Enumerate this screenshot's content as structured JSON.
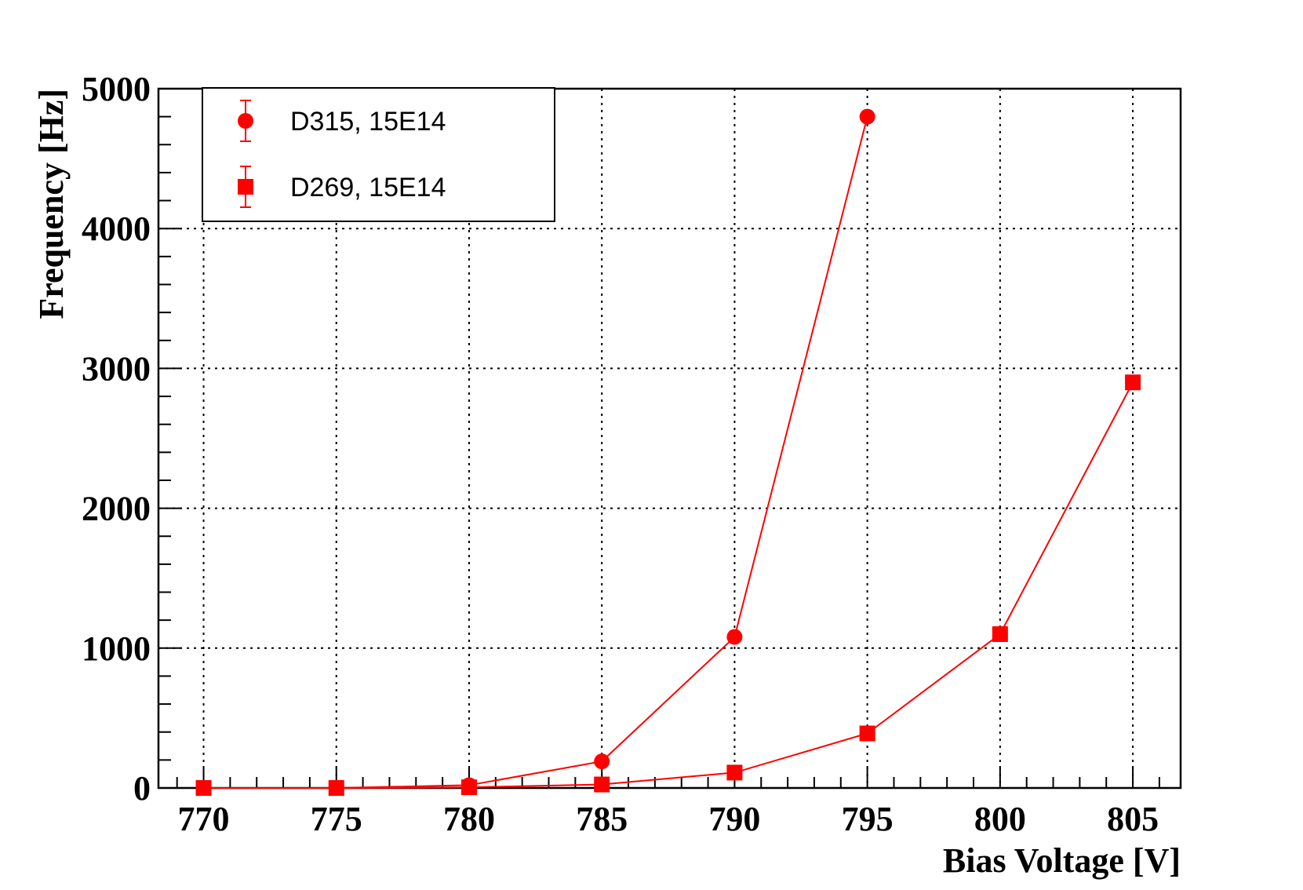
{
  "chart_data": {
    "type": "line",
    "title": "",
    "xlabel": "Bias Voltage [V]",
    "ylabel": "Frequency [Hz]",
    "xlim": [
      768.3,
      806.8
    ],
    "ylim": [
      0,
      5000
    ],
    "x_ticks": [
      "770",
      "775",
      "780",
      "785",
      "790",
      "795",
      "800",
      "805"
    ],
    "y_ticks": [
      "0",
      "1000",
      "2000",
      "3000",
      "4000",
      "5000"
    ],
    "grid": true,
    "legend_position": "top-left",
    "color": "#ff0000",
    "series": [
      {
        "name": "D315, 15E14",
        "marker": "circle",
        "x": [
          770,
          775,
          780,
          785,
          790,
          795
        ],
        "y": [
          0,
          0,
          20,
          190,
          1080,
          4800
        ]
      },
      {
        "name": "D269, 15E14",
        "marker": "square",
        "x": [
          770,
          775,
          780,
          785,
          790,
          795,
          800,
          805
        ],
        "y": [
          0,
          0,
          5,
          25,
          110,
          390,
          1100,
          2900
        ]
      }
    ]
  }
}
